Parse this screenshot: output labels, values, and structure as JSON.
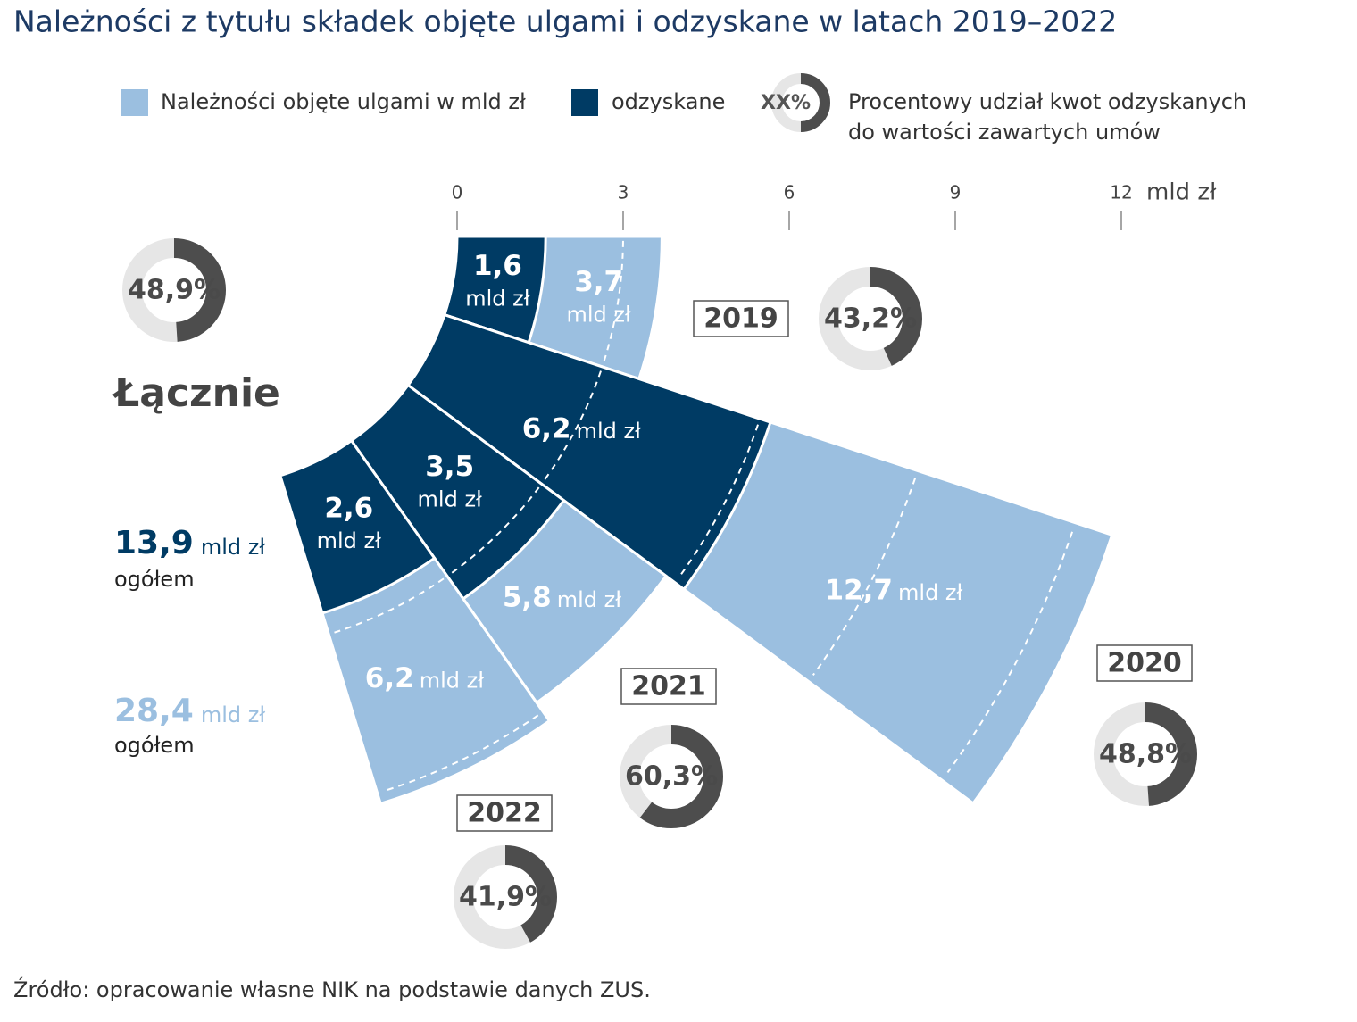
{
  "chart_data": {
    "type": "radial_bar",
    "title": "Należności z tytułu składek objęte ulgami i odzyskane w latach 2019–2022",
    "unit": "mld zł",
    "xlim": [
      0,
      12
    ],
    "xticks": [
      0,
      3,
      6,
      9,
      12
    ],
    "categories": [
      "2019",
      "2020",
      "2021",
      "2022"
    ],
    "series": [
      {
        "name": "Należności objęte ulgami w mld zł",
        "color": "#9bbfe0",
        "values": [
          3.7,
          12.7,
          5.8,
          6.2
        ],
        "value_labels": [
          "3,7",
          "12,7",
          "5,8",
          "6,2"
        ]
      },
      {
        "name": "odzyskane",
        "color": "#003b64",
        "values": [
          1.6,
          6.2,
          3.5,
          2.6
        ],
        "value_labels": [
          "1,6",
          "6,2",
          "3,5",
          "2,6"
        ]
      }
    ],
    "share": {
      "name": "Procentowy udział kwot odzyskanych do wartości zawartych umów",
      "legend_sample": "XX%",
      "color": "#4d4d4d",
      "track_color": "#e6e6e6",
      "values": [
        43.2,
        48.8,
        60.3,
        41.9
      ],
      "value_labels": [
        "43,2%",
        "48,8%",
        "60,3%",
        "41,9%"
      ]
    },
    "total": {
      "label": "Łącznie",
      "note": "ogółem",
      "series_values": [
        28.4,
        13.9
      ],
      "value_labels": [
        "28,4",
        "13,9"
      ],
      "share": 48.9,
      "share_label": "48,9%"
    }
  },
  "source": "Źródło: opracowanie własne NIK na podstawie danych ZUS."
}
